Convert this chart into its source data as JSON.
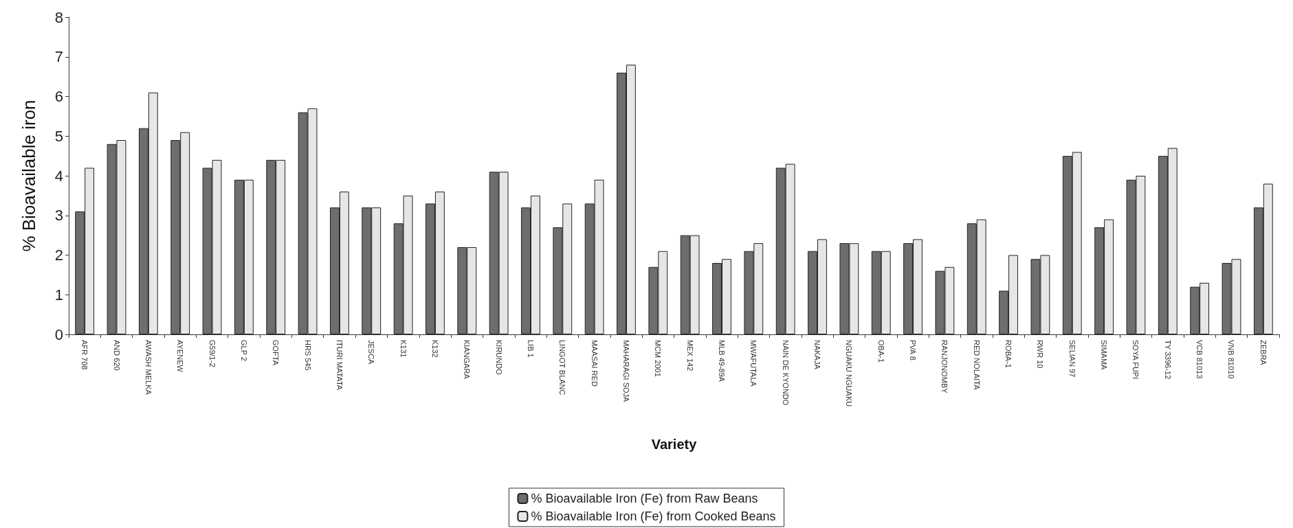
{
  "chart_data": {
    "type": "bar",
    "xlabel": "Variety",
    "ylabel": "% Bioavailable iron",
    "categories": [
      "AFR 708",
      "AND 620",
      "AWASH MELKA",
      "AYENEW",
      "G59/1-2",
      "GLP 2",
      "GOFTA",
      "HRS 545",
      "ITURI MATATA",
      "JESCA",
      "K131",
      "K132",
      "KIANGARA",
      "KIRUNDO",
      "LIB 1",
      "LINGOT BLANC",
      "MAASAI RED",
      "MAHARAGI SOJA",
      "MCM 2001",
      "MEX 142",
      "MLB 49-89A",
      "MWAFUTALA",
      "NAIN DE KYONDO",
      "NAKAJA",
      "NGUAKU NGUAKU",
      "OBA-1",
      "PVA 8",
      "RANJONOMBY",
      "RED NOLAITA",
      "ROBA-1",
      "RWR 10",
      "SELIAN 97",
      "SIMAMA",
      "SOYA FUPI",
      "TY 3396-12",
      "VCB 81013",
      "VNB 81010",
      "ZEBRA"
    ],
    "series": [
      {
        "name": "% Bioavailable Iron (Fe) from Raw Beans",
        "color": "#6e6e6e",
        "values": [
          3.1,
          4.8,
          5.2,
          4.9,
          4.2,
          3.9,
          4.4,
          5.6,
          3.2,
          3.2,
          2.8,
          3.3,
          2.2,
          4.1,
          3.2,
          2.7,
          3.3,
          6.6,
          1.7,
          2.5,
          1.8,
          2.1,
          4.2,
          2.1,
          2.3,
          2.1,
          2.3,
          1.6,
          2.8,
          1.1,
          1.9,
          4.5,
          2.7,
          3.9,
          4.5,
          1.2,
          1.8,
          3.2
        ]
      },
      {
        "name": "% Bioavailable Iron (Fe) from Cooked Beans",
        "color": "#e6e6e6",
        "values": [
          4.2,
          4.9,
          6.1,
          5.1,
          4.4,
          3.9,
          4.4,
          5.7,
          3.6,
          3.2,
          3.5,
          3.6,
          2.2,
          4.1,
          3.5,
          3.3,
          3.9,
          6.8,
          2.1,
          2.5,
          1.9,
          2.3,
          4.3,
          2.4,
          2.3,
          2.1,
          2.4,
          1.7,
          2.9,
          2.0,
          2.0,
          4.6,
          2.9,
          4.0,
          4.7,
          1.3,
          1.9,
          3.8
        ]
      }
    ],
    "ylim": [
      0,
      8
    ],
    "yticks": [
      0,
      1,
      2,
      3,
      4,
      5,
      6,
      7,
      8
    ],
    "grid": false,
    "legend": "bottom"
  }
}
